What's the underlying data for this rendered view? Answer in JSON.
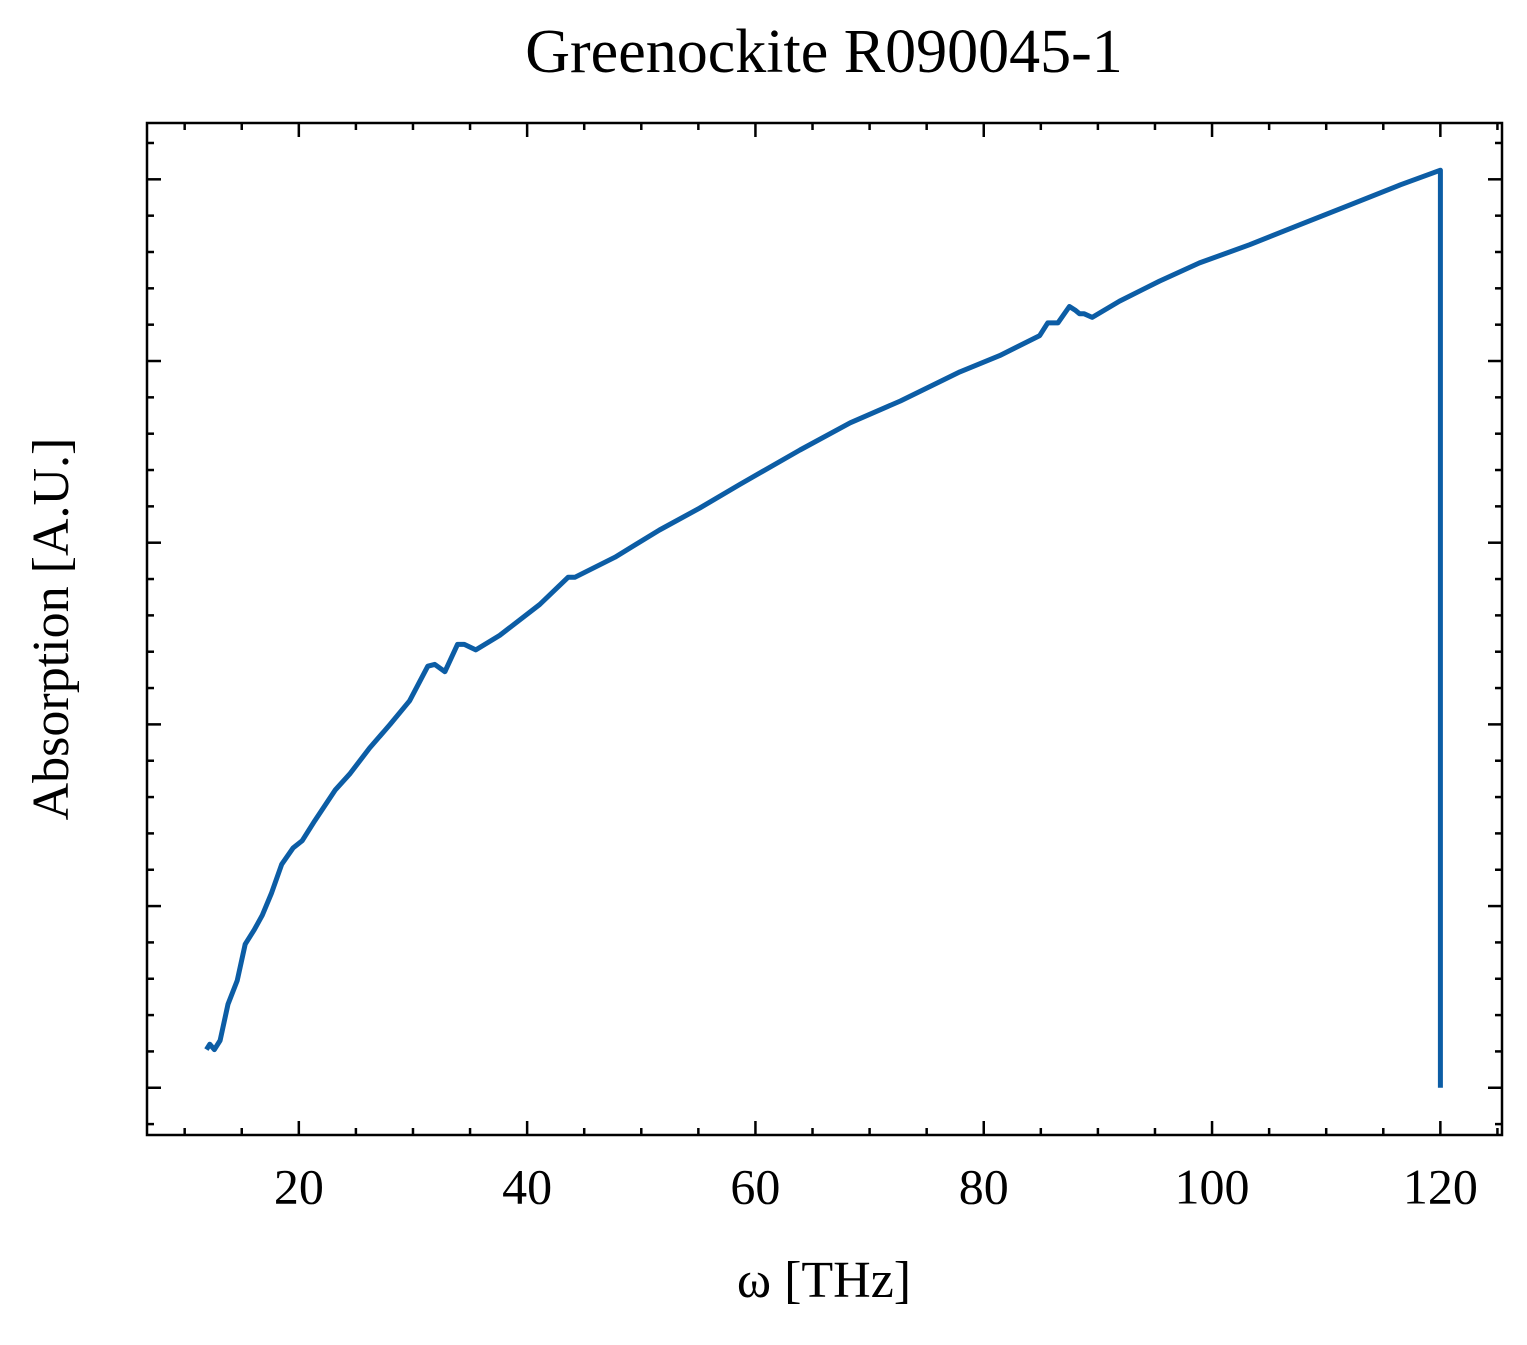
{
  "chart_data": {
    "type": "line",
    "title": "Greenockite R090045-1",
    "x_label": "ω [THz]",
    "y_label": "Absorption [A.U.]",
    "x": [
      11.9,
      12.2,
      12.6,
      13.1,
      13.8,
      14.6,
      15.3,
      16.1,
      16.8,
      17.6,
      18.5,
      19.5,
      20.3,
      21.4,
      23.2,
      24.5,
      26.2,
      28.0,
      29.7,
      31.3,
      31.9,
      32.8,
      33.9,
      34.5,
      35.5,
      37.6,
      41.1,
      43.6,
      44.2,
      47.7,
      51.6,
      55.1,
      58.6,
      63.9,
      68.3,
      72.7,
      77.9,
      81.4,
      84.9,
      85.6,
      86.5,
      87.5,
      88.0,
      88.4,
      88.8,
      89.5,
      91.9,
      95.4,
      98.9,
      103.3,
      107.7,
      112.1,
      116.5,
      120.0,
      120.0
    ],
    "series": [
      {
        "name": "Greenockite R090045-1",
        "color": "#0C5DA5",
        "values": [
          0.21,
          0.24,
          0.21,
          0.26,
          0.46,
          0.59,
          0.79,
          0.87,
          0.95,
          1.07,
          1.23,
          1.32,
          1.36,
          1.47,
          1.64,
          1.73,
          1.87,
          2.0,
          2.13,
          2.32,
          2.33,
          2.29,
          2.44,
          2.44,
          2.41,
          2.49,
          2.66,
          2.81,
          2.81,
          2.92,
          3.07,
          3.19,
          3.32,
          3.51,
          3.66,
          3.78,
          3.94,
          4.03,
          4.14,
          4.21,
          4.21,
          4.3,
          4.28,
          4.26,
          4.26,
          4.24,
          4.33,
          4.44,
          4.54,
          4.64,
          4.75,
          4.86,
          4.97,
          5.05,
          0
        ]
      }
    ],
    "xlim": [
      6.7,
      125.4
    ],
    "ylim": [
      -0.26,
      5.31
    ],
    "xticks": [
      20,
      40,
      60,
      80,
      100,
      120
    ],
    "yticks": [
      0,
      1,
      2,
      3,
      4,
      5
    ],
    "xminorticks": [
      10,
      15,
      25,
      30,
      35,
      45,
      50,
      55,
      65,
      70,
      75,
      85,
      90,
      95,
      105,
      110,
      115,
      125
    ],
    "yminorticks": [
      -0.2,
      0.2,
      0.4,
      0.6,
      0.8,
      1.2,
      1.4,
      1.6,
      1.8,
      2.2,
      2.4,
      2.6,
      2.8,
      3.2,
      3.4,
      3.6,
      3.8,
      4.2,
      4.4,
      4.6,
      4.8,
      5.2
    ],
    "grid": false
  }
}
